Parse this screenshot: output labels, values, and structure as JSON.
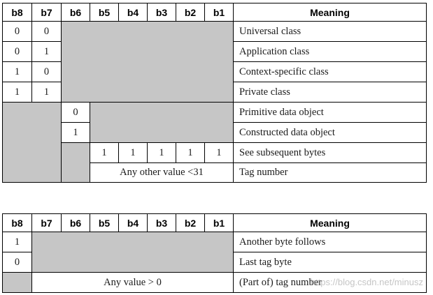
{
  "table1": {
    "headers": [
      "b8",
      "b7",
      "b6",
      "b5",
      "b4",
      "b3",
      "b2",
      "b1",
      "Meaning"
    ],
    "rows": [
      {
        "b8": "0",
        "b7": "0",
        "meaning": "Universal class"
      },
      {
        "b8": "0",
        "b7": "1",
        "meaning": "Application class"
      },
      {
        "b8": "1",
        "b7": "0",
        "meaning": "Context-specific class"
      },
      {
        "b8": "1",
        "b7": "1",
        "meaning": "Private class"
      },
      {
        "b6": "0",
        "meaning": "Primitive data object"
      },
      {
        "b6": "1",
        "meaning": "Constructed data object"
      },
      {
        "b5": "1",
        "b4": "1",
        "b3": "1",
        "b2": "1",
        "b1": "1",
        "meaning": "See subsequent bytes"
      },
      {
        "span_value": "Any other value <31",
        "meaning": "Tag number"
      }
    ]
  },
  "table2": {
    "headers": [
      "b8",
      "b7",
      "b6",
      "b5",
      "b4",
      "b3",
      "b2",
      "b1",
      "Meaning"
    ],
    "rows": [
      {
        "b8": "1",
        "meaning": "Another byte follows"
      },
      {
        "b8": "0",
        "meaning": "Last tag byte"
      },
      {
        "span_value": "Any value > 0",
        "meaning": "(Part of) tag number"
      }
    ]
  },
  "watermark": "https://blog.csdn.net/minusz",
  "colors": {
    "shaded_cell": "#c6c6c6",
    "border": "#000000"
  }
}
